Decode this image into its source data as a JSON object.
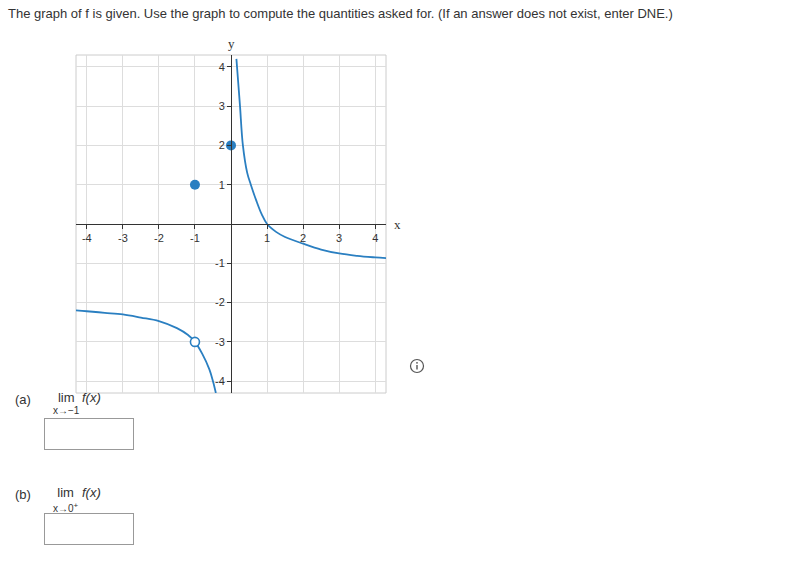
{
  "header": {
    "text": "The graph of f is given. Use the graph to compute the quantities asked for. (If an answer does not exist, enter DNE.)"
  },
  "chart_data": {
    "type": "line",
    "xlabel": "x",
    "ylabel": "y",
    "xlim": [
      -4.3,
      4.3
    ],
    "ylim": [
      -4.3,
      4.3
    ],
    "xticks": [
      -4,
      -3,
      -2,
      -1,
      1,
      2,
      3,
      4
    ],
    "yticks": [
      -4,
      -3,
      -2,
      -1,
      1,
      2,
      3,
      4
    ],
    "grid": true,
    "series": [
      {
        "type": "line",
        "color": "#2a7fc1",
        "line_style": "solid",
        "x": [
          -4.3,
          -4,
          -3.5,
          -3,
          -2.5,
          -2,
          -1.5,
          -1.2,
          -1,
          -0.8,
          -0.6,
          -0.5,
          -0.42
        ],
        "values": [
          -2.2,
          -2.22,
          -2.26,
          -2.3,
          -2.38,
          -2.47,
          -2.65,
          -2.82,
          -3,
          -3.3,
          -3.7,
          -4,
          -4.3
        ]
      },
      {
        "type": "line",
        "color": "#2a7fc1",
        "line_style": "solid",
        "x": [
          0.15,
          0.2,
          0.25,
          0.33,
          0.45,
          0.55,
          0.7,
          0.85,
          1,
          1.25,
          1.5,
          2,
          2.5,
          3,
          3.5,
          4,
          4.3
        ],
        "values": [
          4.2,
          3.6,
          3,
          2,
          1.3,
          1,
          0.6,
          0.25,
          0,
          -0.2,
          -0.33,
          -0.5,
          -0.65,
          -0.75,
          -0.81,
          -0.85,
          -0.87
        ]
      },
      {
        "type": "scatter",
        "color": "#2a7fc1",
        "marker": "filled",
        "x": [
          -1,
          0
        ],
        "values": [
          1,
          2
        ]
      },
      {
        "type": "scatter",
        "color": "#2a7fc1",
        "marker": "open",
        "x": [
          -1
        ],
        "values": [
          -3
        ]
      }
    ]
  },
  "questions": [
    {
      "label": "(a)",
      "limit": "lim",
      "subscript": "x→−1",
      "expression": "f(x)"
    },
    {
      "label": "(b)",
      "limit": "lim",
      "subscript": "x→0",
      "superscript": "+",
      "expression": "f(x)"
    }
  ]
}
